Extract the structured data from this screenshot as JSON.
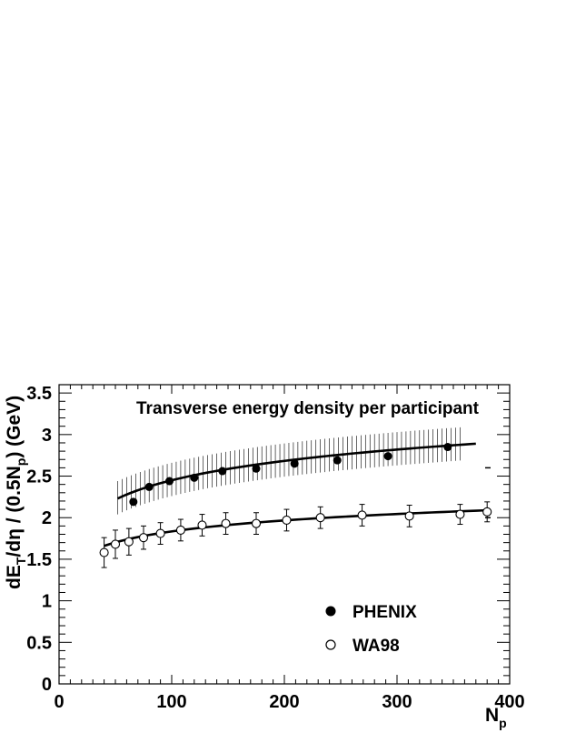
{
  "chart_data": {
    "type": "scatter",
    "title": "Transverse energy density per participant",
    "xlabel": {
      "main": "N",
      "sub": "p"
    },
    "ylabel": {
      "part1": "dE",
      "sub1": "T",
      "part2": "/dη / (0.5N",
      "sub2": "p",
      "part3": ") (GeV)"
    },
    "xlim": [
      0,
      400
    ],
    "ylim": [
      0,
      3.6
    ],
    "xticks": [
      "0",
      "100",
      "200",
      "300",
      "400"
    ],
    "yticks": [
      "0",
      "0.5",
      "1",
      "1.5",
      "2",
      "2.5",
      "3",
      "3.5"
    ],
    "legend_position": "lower-right",
    "series": [
      {
        "name": "PHENIX",
        "marker": "filled-circle",
        "color": "#000000",
        "x": [
          66,
          80,
          98,
          120,
          145,
          175,
          209,
          247,
          292,
          345
        ],
        "y": [
          2.19,
          2.37,
          2.44,
          2.48,
          2.56,
          2.59,
          2.65,
          2.69,
          2.74,
          2.85
        ],
        "systematic_band": {
          "x": [
            52,
            356
          ],
          "lower_offset": -0.19,
          "upper_offset": 0.21
        },
        "fit": {
          "x": [
            52,
            370
          ],
          "y": [
            2.23,
            2.89
          ]
        },
        "side_marks_y": [
          2.6,
          2.0
        ]
      },
      {
        "name": "WA98",
        "marker": "open-circle",
        "color": "#000000",
        "x": [
          40,
          50,
          62,
          75,
          90,
          108,
          127,
          148,
          175,
          202,
          232,
          269,
          311,
          356,
          380
        ],
        "y": [
          1.58,
          1.68,
          1.71,
          1.76,
          1.81,
          1.85,
          1.91,
          1.93,
          1.93,
          1.97,
          2.0,
          2.03,
          2.02,
          2.04,
          2.07
        ],
        "err": [
          0.18,
          0.17,
          0.16,
          0.14,
          0.13,
          0.13,
          0.13,
          0.13,
          0.13,
          0.13,
          0.13,
          0.13,
          0.13,
          0.12,
          0.12
        ],
        "fit": {
          "x": [
            40,
            382
          ],
          "y": [
            1.66,
            2.09
          ]
        }
      }
    ]
  }
}
